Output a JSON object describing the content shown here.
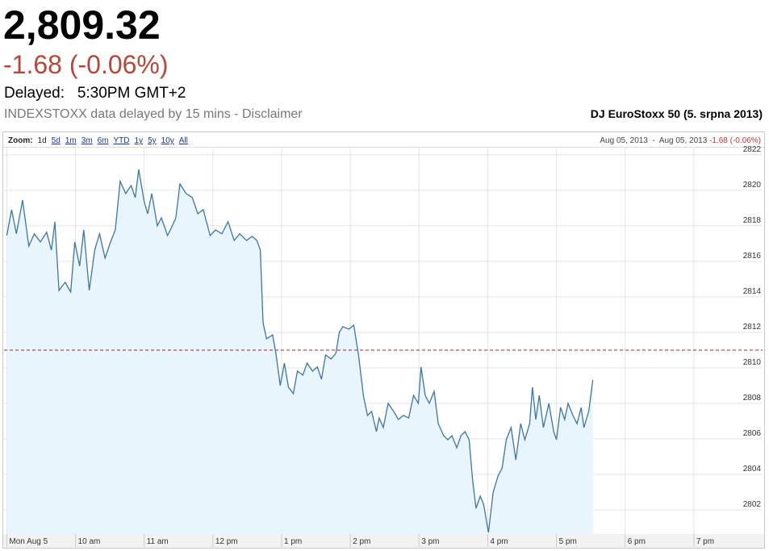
{
  "header": {
    "price": "2,809.32",
    "change": "-1.68 (-0.06%)",
    "delayed": "Delayed:   5:30PM GMT+2",
    "source": "INDEXSTOXX data delayed by 15 mins - Disclaimer"
  },
  "toolbar": {
    "zoom_label": "Zoom:",
    "zoom_options": [
      "1d",
      "5d",
      "1m",
      "3m",
      "6m",
      "YTD",
      "1y",
      "5y",
      "10y",
      "All"
    ],
    "range_start": "Aug 05, 2013",
    "range_separator": "-",
    "range_end": "Aug 05, 2013",
    "range_change": "-1.68 (-0.06%)"
  },
  "chart_data": {
    "type": "line",
    "title": "DJ EuroStoxx 50 (5. srpna 2013)",
    "x": [
      9.0,
      9.07,
      9.14,
      9.23,
      9.32,
      9.4,
      9.49,
      9.58,
      9.65,
      9.7,
      9.76,
      9.85,
      9.93,
      9.99,
      10.06,
      10.12,
      10.2,
      10.28,
      10.35,
      10.43,
      10.51,
      10.58,
      10.65,
      10.73,
      10.81,
      10.87,
      10.92,
      11.0,
      11.05,
      11.11,
      11.19,
      11.25,
      11.34,
      11.41,
      11.46,
      11.52,
      11.61,
      11.7,
      11.78,
      11.86,
      11.96,
      12.04,
      12.13,
      12.22,
      12.31,
      12.39,
      12.49,
      12.57,
      12.64,
      12.69,
      12.73,
      12.78,
      12.87,
      12.92,
      12.98,
      13.04,
      13.1,
      13.17,
      13.23,
      13.31,
      13.37,
      13.45,
      13.52,
      13.58,
      13.64,
      13.72,
      13.79,
      13.84,
      13.89,
      13.98,
      14.05,
      14.12,
      14.19,
      14.25,
      14.31,
      14.38,
      14.42,
      14.48,
      14.55,
      14.63,
      14.7,
      14.77,
      14.85,
      14.92,
      14.99,
      15.03,
      15.09,
      15.15,
      15.22,
      15.28,
      15.36,
      15.42,
      15.48,
      15.55,
      15.61,
      15.67,
      15.73,
      15.78,
      15.83,
      15.89,
      15.94,
      16.01,
      16.08,
      16.15,
      16.21,
      16.27,
      16.34,
      16.41,
      16.48,
      16.54,
      16.61,
      16.65,
      16.7,
      16.75,
      16.81,
      16.89,
      16.96,
      17.0,
      17.06,
      17.12,
      17.17,
      17.24,
      17.3,
      17.36,
      17.4,
      17.47,
      17.53
    ],
    "values": [
      2817.45,
      2818.91,
      2817.55,
      2819.45,
      2816.86,
      2817.55,
      2817.09,
      2817.64,
      2816.64,
      2818.23,
      2814.36,
      2814.82,
      2814.27,
      2817.09,
      2815.73,
      2817.77,
      2814.36,
      2816.64,
      2817.55,
      2816.18,
      2817.09,
      2817.77,
      2820.5,
      2819.82,
      2820.27,
      2819.59,
      2821.18,
      2819.36,
      2818.68,
      2819.82,
      2818.0,
      2818.45,
      2817.45,
      2818.0,
      2818.45,
      2820.36,
      2819.82,
      2819.59,
      2818.68,
      2818.91,
      2817.45,
      2817.77,
      2817.55,
      2818.23,
      2817.18,
      2817.55,
      2817.18,
      2817.41,
      2817.18,
      2816.64,
      2812.55,
      2811.64,
      2811.86,
      2810.73,
      2809.0,
      2810.27,
      2808.91,
      2808.55,
      2809.82,
      2809.59,
      2810.27,
      2809.82,
      2810.05,
      2809.36,
      2810.73,
      2810.5,
      2810.82,
      2812.0,
      2812.32,
      2812.18,
      2812.41,
      2810.73,
      2808.45,
      2807.32,
      2807.55,
      2806.41,
      2807.18,
      2806.64,
      2808.0,
      2807.55,
      2807.09,
      2807.32,
      2807.18,
      2808.45,
      2808.0,
      2810.05,
      2808.45,
      2808.0,
      2808.68,
      2806.86,
      2806.18,
      2805.95,
      2806.18,
      2805.5,
      2806.18,
      2806.41,
      2805.95,
      2803.68,
      2802.09,
      2802.77,
      2802.32,
      2800.73,
      2803.0,
      2803.91,
      2804.36,
      2805.95,
      2806.64,
      2804.82,
      2806.86,
      2805.95,
      2806.86,
      2808.91,
      2807.09,
      2808.45,
      2806.64,
      2808.0,
      2806.41,
      2805.95,
      2807.77,
      2807.09,
      2808.0,
      2807.32,
      2806.86,
      2807.77,
      2806.64,
      2807.55,
      2809.32
    ],
    "color": "#3b76a4",
    "fill_color": "#e9f5fd",
    "xlim": [
      8.96,
      20
    ],
    "ylim": [
      2800.64,
      2822.45
    ],
    "xticks": [
      {
        "value": 9,
        "label": "Mon Aug 5"
      },
      {
        "value": 10,
        "label": "10 am"
      },
      {
        "value": 11,
        "label": "11 am"
      },
      {
        "value": 12,
        "label": "12 pm"
      },
      {
        "value": 13,
        "label": "1 pm"
      },
      {
        "value": 14,
        "label": "2 pm"
      },
      {
        "value": 15,
        "label": "3 pm"
      },
      {
        "value": 16,
        "label": "4 pm"
      },
      {
        "value": 17,
        "label": "5 pm"
      },
      {
        "value": 18,
        "label": "6 pm"
      },
      {
        "value": 19,
        "label": "7 pm"
      }
    ],
    "yticks": [
      2802,
      2804,
      2806,
      2808,
      2810,
      2812,
      2814,
      2816,
      2818,
      2820,
      2822
    ],
    "grid": true,
    "reference_line": {
      "value": 2811,
      "color": "#9b2a2a"
    }
  }
}
